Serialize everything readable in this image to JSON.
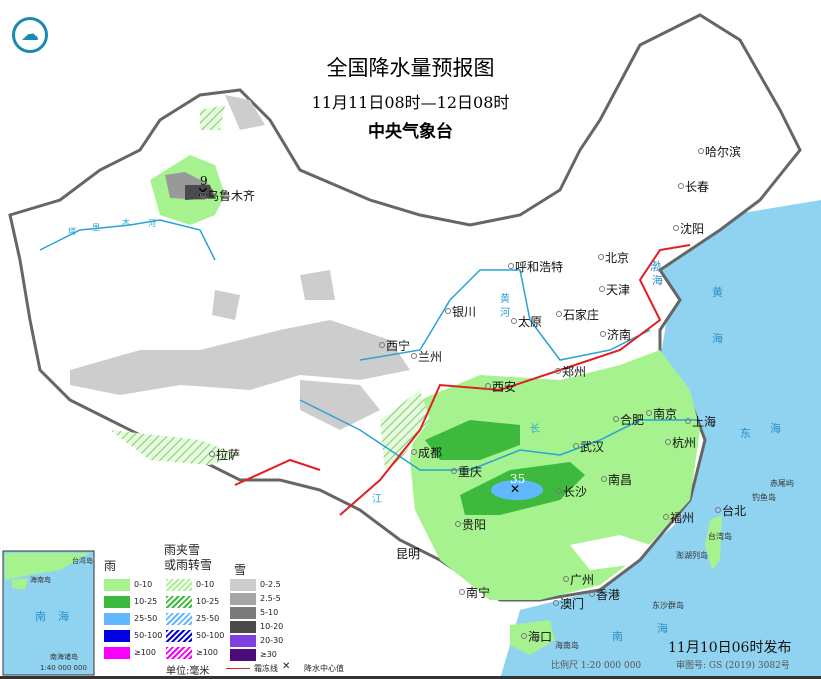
{
  "header": {
    "title": "全国降水量预报图",
    "period": "11月11日08时—12日08时",
    "agency": "中央气象台"
  },
  "release": "11月10日06时发布",
  "footer": {
    "scale": "比例尺 1:20 000 000",
    "approval": "审图号: GS (2019) 3082号"
  },
  "centers": [
    {
      "value": "9"
    },
    {
      "value": "35"
    }
  ],
  "cities": [
    "乌鲁木齐",
    "哈尔滨",
    "长春",
    "沈阳",
    "呼和浩特",
    "北京",
    "天津",
    "石家庄",
    "太原",
    "银川",
    "济南",
    "西宁",
    "兰州",
    "郑州",
    "西安",
    "合肥",
    "南京",
    "上海",
    "杭州",
    "成都",
    "武汉",
    "重庆",
    "长沙",
    "南昌",
    "拉萨",
    "贵阳",
    "福州",
    "台北",
    "昆明",
    "南宁",
    "广州",
    "澳门",
    "香港",
    "海口"
  ],
  "seas": [
    "渤",
    "海",
    "黄",
    "海",
    "东",
    "海",
    "南",
    "海"
  ],
  "small_labels": [
    "塔",
    "里",
    "木",
    "河",
    "台湾岛",
    "钓鱼岛",
    "赤尾屿",
    "澎湖列岛",
    "东沙群岛",
    "海南岛",
    "长",
    "江",
    "黄",
    "河"
  ],
  "inset": {
    "labels": [
      "南",
      "海",
      "海南岛",
      "南海诸岛",
      "台湾岛"
    ],
    "scale": "1:40 000 000"
  },
  "legend": {
    "rain": {
      "title": "雨",
      "items": [
        "0-10",
        "10-25",
        "25-50",
        "50-100",
        "≥100"
      ],
      "colors": [
        "#a6f28f",
        "#3dba3d",
        "#61b8ff",
        "#0000e1",
        "#fa00fa"
      ]
    },
    "mixed": {
      "title": "雨夹雪\n或雨转雪",
      "items": [
        "0-10",
        "10-25",
        "25-50",
        "50-100",
        "≥100"
      ]
    },
    "snow": {
      "title": "雪",
      "items": [
        "0-2.5",
        "2.5-5",
        "5-10",
        "10-20",
        "20-30",
        "≥30"
      ],
      "colors": [
        "#cdcdcd",
        "#a5a5a5",
        "#7a7a7a",
        "#4a4a4a",
        "#7f40e0",
        "#4b0c7a"
      ]
    },
    "unit": "单位:毫米",
    "frost_line": "霜冻线",
    "center_mark": "降水中心值"
  },
  "colors": {
    "sea": "#8fd3f0",
    "border": "#666666",
    "river": "#29a3d6",
    "frost": "#e02020"
  }
}
